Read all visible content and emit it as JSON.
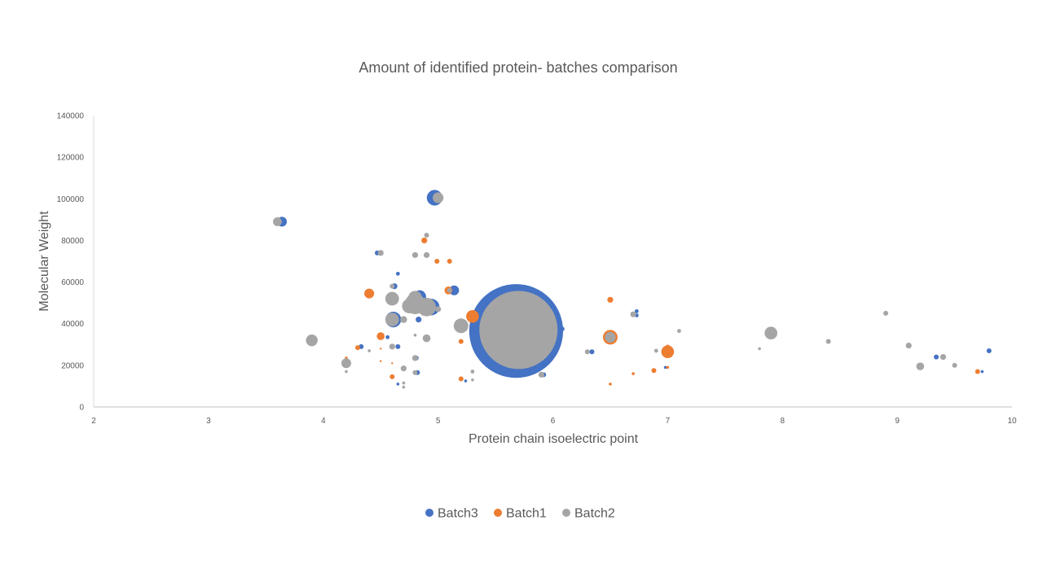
{
  "chart_data": {
    "type": "bubble",
    "title": "Amount of identified protein- batches comparison",
    "xlabel": "Protein chain isoelectric point",
    "ylabel": "Molecular Weight",
    "xlim": [
      2,
      10
    ],
    "ylim": [
      0,
      140000
    ],
    "x_ticks": [
      "2",
      "3",
      "4",
      "5",
      "6",
      "7",
      "8",
      "9",
      "10"
    ],
    "y_ticks": [
      "0",
      "20000",
      "40000",
      "60000",
      "80000",
      "100000",
      "120000",
      "140000"
    ],
    "grid": false,
    "legend_position": "bottom",
    "series": [
      {
        "name": "Batch3",
        "color": "#4472C4",
        "points": [
          [
            3.64,
            89000,
            1.0
          ],
          [
            4.97,
            100500,
            1.6
          ],
          [
            4.47,
            74000,
            0.5
          ],
          [
            4.65,
            64000,
            0.4
          ],
          [
            4.62,
            58000,
            0.6
          ],
          [
            5.14,
            56000,
            1.0
          ],
          [
            4.84,
            53000,
            1.3
          ],
          [
            4.61,
            52000,
            1.1
          ],
          [
            4.94,
            48000,
            1.7
          ],
          [
            4.61,
            42000,
            1.6
          ],
          [
            4.83,
            42000,
            0.6
          ],
          [
            5.68,
            36500,
            9.6
          ],
          [
            6.08,
            37500,
            0.5
          ],
          [
            6.34,
            26500,
            0.5
          ],
          [
            6.73,
            46000,
            0.4
          ],
          [
            6.73,
            44000,
            0.4
          ],
          [
            4.33,
            29000,
            0.5
          ],
          [
            4.65,
            29000,
            0.5
          ],
          [
            4.81,
            23500,
            0.5
          ],
          [
            4.82,
            16500,
            0.5
          ],
          [
            4.56,
            33500,
            0.4
          ],
          [
            5.92,
            15500,
            0.5
          ],
          [
            6.98,
            19000,
            0.3
          ],
          [
            5.3,
            17000,
            0.3
          ],
          [
            4.65,
            11000,
            0.3
          ],
          [
            9.34,
            24000,
            0.5
          ],
          [
            9.8,
            27000,
            0.5
          ],
          [
            9.74,
            17000,
            0.3
          ],
          [
            5.24,
            12500,
            0.3
          ]
        ]
      },
      {
        "name": "Batch1",
        "color": "#ED7D31",
        "points": [
          [
            4.88,
            80000,
            0.6
          ],
          [
            4.99,
            70000,
            0.5
          ],
          [
            5.1,
            70000,
            0.5
          ],
          [
            4.4,
            54500,
            1.0
          ],
          [
            5.09,
            56000,
            0.8
          ],
          [
            5.3,
            43500,
            1.3
          ],
          [
            6.5,
            51500,
            0.6
          ],
          [
            6.5,
            33500,
            1.5
          ],
          [
            7.0,
            26500,
            1.3
          ],
          [
            7.0,
            29000,
            0.4
          ],
          [
            6.88,
            17500,
            0.5
          ],
          [
            7.0,
            19000,
            0.3
          ],
          [
            6.5,
            11000,
            0.3
          ],
          [
            6.7,
            16000,
            0.3
          ],
          [
            4.6,
            14500,
            0.5
          ],
          [
            4.2,
            23500,
            0.3
          ],
          [
            4.5,
            34000,
            0.8
          ],
          [
            5.2,
            31500,
            0.5
          ],
          [
            4.3,
            28500,
            0.5
          ],
          [
            4.5,
            28000,
            0.2
          ],
          [
            4.5,
            22000,
            0.2
          ],
          [
            4.6,
            21000,
            0.2
          ],
          [
            5.2,
            13500,
            0.5
          ],
          [
            9.7,
            17000,
            0.5
          ]
        ]
      },
      {
        "name": "Batch2",
        "color": "#A5A5A5",
        "points": [
          [
            3.6,
            89000,
            0.9
          ],
          [
            5.0,
            100500,
            1.1
          ],
          [
            4.5,
            74000,
            0.6
          ],
          [
            4.8,
            73000,
            0.6
          ],
          [
            4.9,
            73000,
            0.6
          ],
          [
            4.9,
            82500,
            0.5
          ],
          [
            4.6,
            58000,
            0.5
          ],
          [
            4.6,
            52000,
            1.4
          ],
          [
            4.8,
            52500,
            1.4
          ],
          [
            4.8,
            49500,
            2.1
          ],
          [
            4.9,
            48000,
            1.9
          ],
          [
            4.75,
            48500,
            1.5
          ],
          [
            5.0,
            47000,
            0.6
          ],
          [
            5.1,
            56000,
            0.5
          ],
          [
            4.6,
            42000,
            1.4
          ],
          [
            4.7,
            42000,
            0.7
          ],
          [
            4.8,
            34500,
            0.3
          ],
          [
            4.9,
            33000,
            0.8
          ],
          [
            5.2,
            39000,
            1.5
          ],
          [
            5.7,
            37000,
            8.0
          ],
          [
            3.9,
            32000,
            1.2
          ],
          [
            4.2,
            21000,
            1.0
          ],
          [
            4.4,
            27000,
            0.3
          ],
          [
            4.6,
            29000,
            0.6
          ],
          [
            4.7,
            18500,
            0.6
          ],
          [
            4.8,
            23500,
            0.6
          ],
          [
            4.8,
            16500,
            0.5
          ],
          [
            4.2,
            17000,
            0.3
          ],
          [
            4.7,
            11500,
            0.3
          ],
          [
            4.7,
            9500,
            0.3
          ],
          [
            5.3,
            17000,
            0.4
          ],
          [
            5.3,
            13000,
            0.3
          ],
          [
            5.9,
            15500,
            0.6
          ],
          [
            6.3,
            26500,
            0.5
          ],
          [
            6.5,
            33500,
            1.1
          ],
          [
            6.7,
            44500,
            0.6
          ],
          [
            6.9,
            27000,
            0.4
          ],
          [
            7.1,
            36500,
            0.4
          ],
          [
            7.8,
            28000,
            0.3
          ],
          [
            7.9,
            35500,
            1.3
          ],
          [
            8.4,
            31500,
            0.5
          ],
          [
            8.9,
            45000,
            0.5
          ],
          [
            9.1,
            29500,
            0.6
          ],
          [
            9.2,
            19500,
            0.8
          ],
          [
            9.4,
            24000,
            0.6
          ],
          [
            9.5,
            20000,
            0.5
          ]
        ]
      }
    ]
  }
}
